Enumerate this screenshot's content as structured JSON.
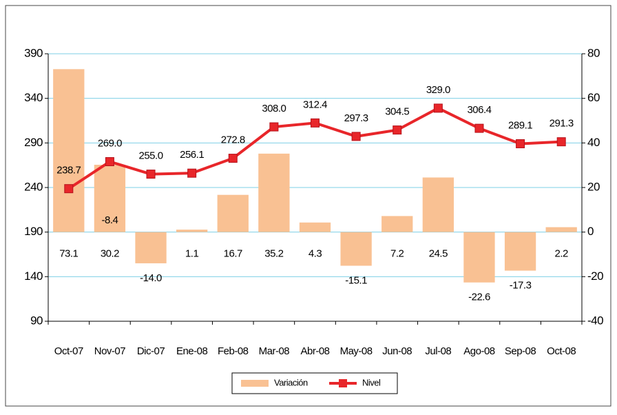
{
  "chart_data": {
    "type": "bar-line",
    "categories": [
      "Oct-07",
      "Nov-07",
      "Dic-07",
      "Ene-08",
      "Feb-08",
      "Mar-08",
      "Abr-08",
      "May-08",
      "Jun-08",
      "Jul-08",
      "Ago-08",
      "Sep-08",
      "Oct-08"
    ],
    "series": [
      {
        "name": "Variación",
        "type": "bar",
        "axis": "y2",
        "color": "#f9c193",
        "values": [
          73.1,
          30.2,
          -14.0,
          1.1,
          16.7,
          35.2,
          4.3,
          -15.1,
          7.2,
          24.5,
          -22.6,
          -17.3,
          2.2
        ],
        "value_labels": [
          "73.1",
          "30.2",
          "-14.0",
          "1.1",
          "16.7",
          "35.2",
          "4.3",
          "-15.1",
          "7.2",
          "24.5",
          "-22.6",
          "-17.3",
          "2.2"
        ]
      },
      {
        "name": "Nivel",
        "type": "line",
        "axis": "y",
        "color": "#e8262a",
        "values": [
          238.7,
          269.0,
          255.0,
          256.1,
          272.8,
          308.0,
          312.4,
          297.3,
          304.5,
          329.0,
          306.4,
          289.1,
          291.3
        ],
        "value_labels": [
          "238.7",
          "269.0",
          "255.0",
          "256.1",
          "272.8",
          "308.0",
          "312.4",
          "297.3",
          "304.5",
          "329.0",
          "306.4",
          "289.1",
          "291.3"
        ]
      }
    ],
    "annotations": [
      "-8.4"
    ],
    "ylim": [
      90,
      390
    ],
    "yticks": [
      90,
      140,
      190,
      240,
      290,
      340,
      390
    ],
    "y2lim": [
      -40,
      80
    ],
    "y2ticks": [
      -40,
      -20,
      0,
      20,
      40,
      60,
      80
    ],
    "grid": true,
    "legend": "bottom"
  }
}
